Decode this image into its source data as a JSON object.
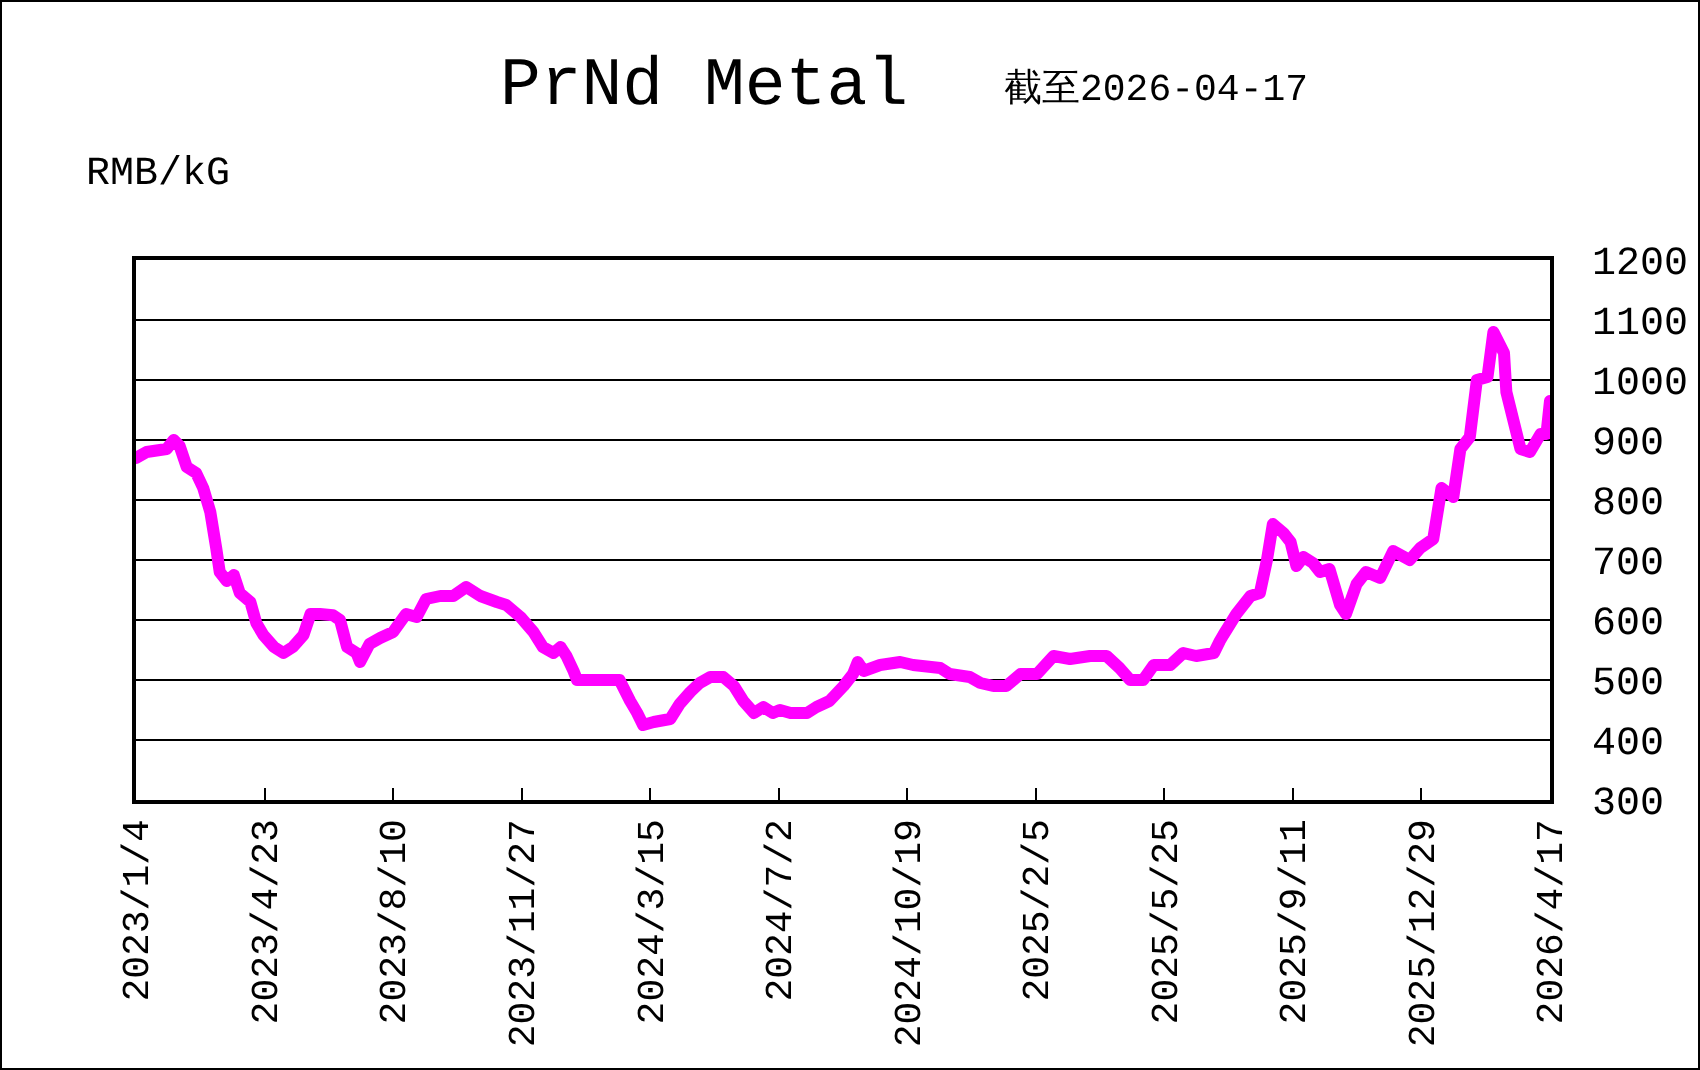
{
  "chart_data": {
    "type": "line",
    "title": "PrNd Metal",
    "subtitle": "截至2026-04-17",
    "ylabel": "RMB/kG",
    "x": [
      "2023-01-04",
      "2023-01-13",
      "2023-01-30",
      "2023-02-05",
      "2023-02-10",
      "2023-02-16",
      "2023-02-24",
      "2023-03-02",
      "2023-03-08",
      "2023-03-13",
      "2023-03-16",
      "2023-03-22",
      "2023-03-28",
      "2023-04-02",
      "2023-04-11",
      "2023-04-16",
      "2023-04-22",
      "2023-05-01",
      "2023-05-09",
      "2023-05-17",
      "2023-05-26",
      "2023-06-01",
      "2023-06-09",
      "2023-06-20",
      "2023-06-26",
      "2023-07-02",
      "2023-07-10",
      "2023-07-13",
      "2023-07-21",
      "2023-07-30",
      "2023-08-10",
      "2023-08-21",
      "2023-08-30",
      "2023-09-07",
      "2023-09-19",
      "2023-09-30",
      "2023-10-11",
      "2023-10-23",
      "2023-11-06",
      "2023-11-14",
      "2023-11-26",
      "2023-12-07",
      "2023-12-15",
      "2023-12-24",
      "2023-12-30",
      "2024-01-04",
      "2024-01-10",
      "2024-01-13",
      "2024-02-18",
      "2024-02-27",
      "2024-03-04",
      "2024-03-09",
      "2024-03-18",
      "2024-04-01",
      "2024-04-09",
      "2024-04-18",
      "2024-04-26",
      "2024-05-05",
      "2024-05-16",
      "2024-05-25",
      "2024-06-02",
      "2024-06-11",
      "2024-06-19",
      "2024-06-27",
      "2024-07-03",
      "2024-07-12",
      "2024-07-26",
      "2024-08-03",
      "2024-08-14",
      "2024-08-26",
      "2024-09-03",
      "2024-09-07",
      "2024-09-12",
      "2024-09-26",
      "2024-10-13",
      "2024-10-24",
      "2024-11-16",
      "2024-11-24",
      "2024-12-11",
      "2024-12-20",
      "2024-12-31",
      "2025-01-11",
      "2025-01-23",
      "2025-02-06",
      "2025-02-20",
      "2025-03-06",
      "2025-03-23",
      "2025-04-06",
      "2025-04-17",
      "2025-04-26",
      "2025-05-07",
      "2025-05-16",
      "2025-05-30",
      "2025-06-10",
      "2025-06-21",
      "2025-07-06",
      "2025-07-11",
      "2025-07-14",
      "2025-07-25",
      "2025-08-06",
      "2025-08-14",
      "2025-08-20",
      "2025-08-25",
      "2025-09-03",
      "2025-09-09",
      "2025-09-14",
      "2025-09-20",
      "2025-09-28",
      "2025-10-04",
      "2025-10-12",
      "2025-10-21",
      "2025-10-26",
      "2025-11-04",
      "2025-11-12",
      "2025-11-24",
      "2025-12-05",
      "2025-12-19",
      "2025-12-28",
      "2026-01-08",
      "2026-01-15",
      "2026-01-25",
      "2026-01-31",
      "2026-02-08",
      "2026-02-14",
      "2026-02-23",
      "2026-02-28",
      "2026-03-09",
      "2026-03-11",
      "2026-03-23",
      "2026-03-31",
      "2026-04-09",
      "2026-04-14",
      "2026-04-17"
    ],
    "series": [
      {
        "color": "#ff00ff",
        "values": [
          870,
          880,
          885,
          900,
          890,
          855,
          845,
          820,
          780,
          720,
          680,
          665,
          675,
          645,
          630,
          595,
          575,
          555,
          545,
          555,
          575,
          610,
          610,
          608,
          600,
          555,
          545,
          530,
          560,
          570,
          580,
          610,
          605,
          635,
          640,
          640,
          655,
          640,
          630,
          625,
          605,
          580,
          555,
          545,
          555,
          540,
          515,
          500,
          500,
          465,
          445,
          425,
          430,
          435,
          460,
          480,
          495,
          505,
          505,
          490,
          465,
          445,
          455,
          445,
          450,
          445,
          445,
          455,
          465,
          490,
          510,
          530,
          515,
          525,
          530,
          525,
          520,
          510,
          505,
          495,
          490,
          490,
          510,
          510,
          540,
          535,
          540,
          540,
          520,
          500,
          500,
          525,
          525,
          545,
          540,
          545,
          565,
          575,
          610,
          640,
          645,
          700,
          760,
          745,
          730,
          690,
          705,
          695,
          680,
          685,
          625,
          610,
          660,
          680,
          670,
          715,
          700,
          720,
          735,
          820,
          805,
          885,
          905,
          1000,
          1005,
          1080,
          1045,
          980,
          885,
          880,
          910,
          910,
          965
        ]
      }
    ],
    "xlim": [
      "2023-01-04",
      "2026-04-17"
    ],
    "xticks": [
      {
        "value": "2023-01-04",
        "label": "2023/1/4"
      },
      {
        "value": "2023-04-23",
        "label": "2023/4/23"
      },
      {
        "value": "2023-08-10",
        "label": "2023/8/10"
      },
      {
        "value": "2023-11-27",
        "label": "2023/11/27"
      },
      {
        "value": "2024-03-15",
        "label": "2024/3/15"
      },
      {
        "value": "2024-07-02",
        "label": "2024/7/2"
      },
      {
        "value": "2024-10-19",
        "label": "2024/10/19"
      },
      {
        "value": "2025-02-05",
        "label": "2025/2/5"
      },
      {
        "value": "2025-05-25",
        "label": "2025/5/25"
      },
      {
        "value": "2025-09-11",
        "label": "2025/9/11"
      },
      {
        "value": "2025-12-29",
        "label": "2025/12/29"
      },
      {
        "value": "2026-04-17",
        "label": "2026/4/17"
      }
    ],
    "ylim": [
      300,
      1200
    ],
    "yticks": [
      300,
      400,
      500,
      600,
      700,
      800,
      900,
      1000,
      1100,
      1200
    ],
    "grid": "y"
  }
}
